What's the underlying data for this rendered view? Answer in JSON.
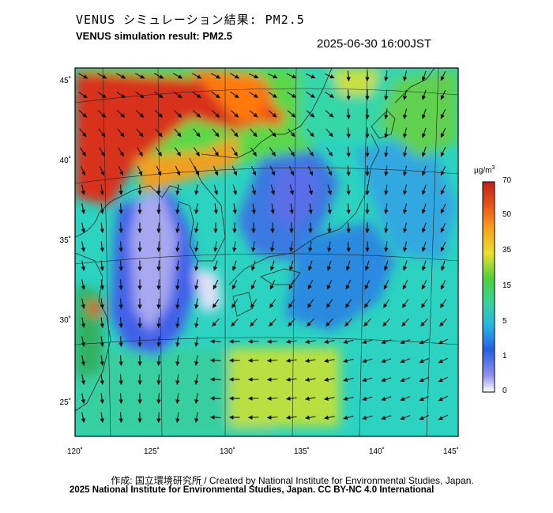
{
  "header": {
    "title_jp": "VENUS シミュレーション結果: PM2.5",
    "title_en": "VENUS simulation result: PM2.5",
    "timestamp": "2025-06-30 16:00JST"
  },
  "map": {
    "variable": "PM2.5",
    "lon_ticks": [
      "120˚",
      "125˚",
      "130˚",
      "135˚",
      "140˚",
      "145˚"
    ],
    "lat_ticks": [
      "45˚",
      "40˚",
      "35˚",
      "30˚",
      "25˚"
    ],
    "lon_range": [
      120,
      145
    ],
    "lat_range": [
      23,
      46
    ],
    "wind_vectors": true
  },
  "colorbar": {
    "unit_text": "µg/m",
    "unit_sup": "3",
    "labels": [
      "70",
      "50",
      "35",
      "15",
      "5",
      "1",
      "0"
    ],
    "colors": [
      "#d42a14",
      "#f08020",
      "#f5c030",
      "#60d040",
      "#30d0b0",
      "#2e6ee0",
      "#ffffff"
    ]
  },
  "footer": {
    "credit_line1": "作成: 国立環境研究所 / Created by National Institute for Environmental Studies, Japan.",
    "credit_line2": "2025 National Institute for Environmental Studies, Japan. CC BY-NC 4.0 International"
  }
}
